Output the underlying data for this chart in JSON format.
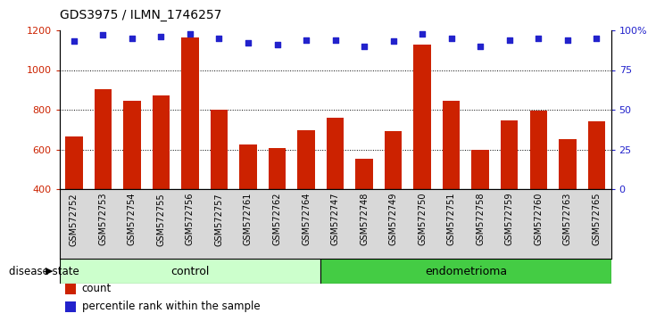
{
  "title": "GDS3975 / ILMN_1746257",
  "samples": [
    "GSM572752",
    "GSM572753",
    "GSM572754",
    "GSM572755",
    "GSM572756",
    "GSM572757",
    "GSM572761",
    "GSM572762",
    "GSM572764",
    "GSM572747",
    "GSM572748",
    "GSM572749",
    "GSM572750",
    "GSM572751",
    "GSM572758",
    "GSM572759",
    "GSM572760",
    "GSM572763",
    "GSM572765"
  ],
  "counts": [
    665,
    905,
    845,
    870,
    1165,
    800,
    625,
    605,
    695,
    760,
    555,
    690,
    1130,
    845,
    600,
    745,
    795,
    650,
    740
  ],
  "percentiles": [
    93,
    97,
    95,
    96,
    98,
    95,
    92,
    91,
    94,
    94,
    90,
    93,
    98,
    95,
    90,
    94,
    95,
    94,
    95
  ],
  "control_count": 9,
  "endometrioma_count": 10,
  "bar_color": "#cc2200",
  "dot_color": "#2222cc",
  "ylim_left": [
    400,
    1200
  ],
  "ylim_right": [
    0,
    100
  ],
  "yticks_left": [
    400,
    600,
    800,
    1000,
    1200
  ],
  "yticks_right": [
    0,
    25,
    50,
    75,
    100
  ],
  "ytick_labels_right": [
    "0",
    "25",
    "50",
    "75",
    "100%"
  ],
  "grid_values": [
    600,
    800,
    1000
  ],
  "control_color": "#ccffcc",
  "endometrioma_color": "#44cc44",
  "ylabel_left_color": "#cc2200",
  "ylabel_right_color": "#2222cc",
  "disease_state_label": "disease state",
  "control_label": "control",
  "endometrioma_label": "endometrioma",
  "legend_count_label": "count",
  "legend_percentile_label": "percentile rank within the sample",
  "bg_color": "#d8d8d8"
}
